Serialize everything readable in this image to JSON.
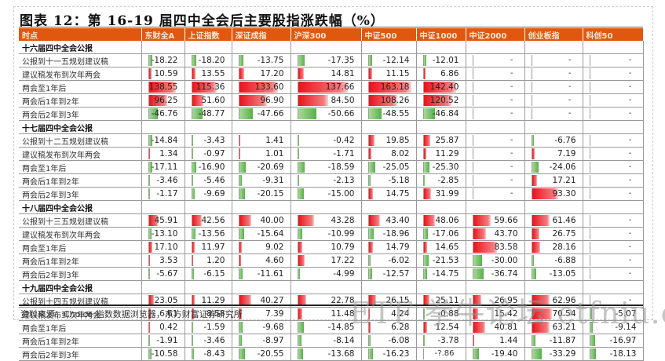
{
  "title": "图表 12：第 16-19 届四中全会后主要股指涨跌幅（%）",
  "header": {
    "label_col": "时点",
    "columns": [
      "东财全A",
      "上证指数",
      "深证成指",
      "沪深300",
      "中证500",
      "中证1000",
      "中证2000",
      "创业板指",
      "科创50"
    ]
  },
  "colors": {
    "header_bg": "#e0580f",
    "positive_bar": "#e8141b",
    "negative_bar": "#58b04a"
  },
  "sections": [
    {
      "title": "十六届四中全会公报",
      "rows": [
        {
          "label": "公报到十一五规划建议稿",
          "values": [
            "-18.22",
            "-18.20",
            "-13.75",
            "-17.35",
            "-12.14",
            "-12.01",
            "-",
            "-",
            "-"
          ]
        },
        {
          "label": "建议稿发布到次年两会",
          "values": [
            "10.59",
            "13.55",
            "17.20",
            "14.81",
            "11.15",
            "6.86",
            "-",
            "-",
            "-"
          ]
        },
        {
          "label": "两会至1年后",
          "values": [
            "138.55",
            "115.36",
            "133.60",
            "137.66",
            "163.18",
            "142.40",
            "-",
            "-",
            "-"
          ]
        },
        {
          "label": "两会后1年到2年",
          "values": [
            "96.25",
            "51.60",
            "96.90",
            "84.50",
            "108.26",
            "120.52",
            "-",
            "-",
            "-"
          ]
        },
        {
          "label": "两会后2年到3年",
          "values": [
            "-46.76",
            "-48.77",
            "-47.66",
            "-50.66",
            "-48.55",
            "-46.84",
            "-",
            "-",
            "-"
          ]
        }
      ]
    },
    {
      "title": "十七届四中全会公报",
      "rows": [
        {
          "label": "公报到十二五规划建议稿",
          "values": [
            "-14.84",
            "-3.43",
            "1.41",
            "-0.42",
            "19.85",
            "25.87",
            "-",
            "-6.76",
            "-"
          ]
        },
        {
          "label": "建议稿发布到次年两会",
          "values": [
            "1.34",
            "-0.97",
            "1.01",
            "-1.71",
            "8.02",
            "11.29",
            "-",
            "7.19",
            "-"
          ]
        },
        {
          "label": "两会至1年后",
          "values": [
            "-17.11",
            "-16.90",
            "-20.69",
            "-18.59",
            "-25.05",
            "-25.30",
            "-",
            "-24.06",
            "-"
          ]
        },
        {
          "label": "两会后1年到2年",
          "values": [
            "-3.46",
            "-5.46",
            "-9.31",
            "-2.13",
            "-5.18",
            "-2.85",
            "-",
            "17.21",
            "-"
          ]
        },
        {
          "label": "两会后2年到3年",
          "values": [
            "-1.17",
            "-9.69",
            "-20.15",
            "-15.00",
            "14.75",
            "31.99",
            "-",
            "93.30",
            "-"
          ]
        }
      ]
    },
    {
      "title": "十八届四中全会公报",
      "rows": [
        {
          "label": "公报到十三五规划建议稿",
          "values": [
            "45.91",
            "42.56",
            "40.00",
            "43.28",
            "43.40",
            "48.06",
            "59.66",
            "61.46",
            "-"
          ]
        },
        {
          "label": "建议稿发布到次年两会",
          "values": [
            "-13.10",
            "-13.56",
            "-15.64",
            "-10.99",
            "-18.96",
            "-17.06",
            "43.70",
            "26.75",
            "-"
          ]
        },
        {
          "label": "两会至1年后",
          "values": [
            "17.10",
            "11.97",
            "9.02",
            "10.79",
            "14.79",
            "14.65",
            "83.58",
            "28.16",
            "-"
          ]
        },
        {
          "label": "两会后1年到2年",
          "values": [
            "3.53",
            "1.20",
            "4.60",
            "17.22",
            "-6.02",
            "-21.53",
            "-30.00",
            "-6.88",
            "-"
          ]
        },
        {
          "label": "两会后2年到3年",
          "values": [
            "-5.67",
            "-6.15",
            "-11.61",
            "-4.99",
            "-12.57",
            "-14.75",
            "-36.74",
            "-13.05",
            "-"
          ]
        }
      ]
    },
    {
      "title": "十九届四中全会公报",
      "rows": [
        {
          "label": "公报到十四五规划建议稿",
          "values": [
            "23.05",
            "11.29",
            "40.27",
            "22.78",
            "26.15",
            "25.11",
            "26.95",
            "62.96",
            "-"
          ]
        },
        {
          "label": "建议稿发布到次年两会",
          "values": [
            "6.61",
            "8.58",
            "7.39",
            "11.48",
            "4.24",
            "-0.88",
            "15.42",
            "70.54",
            "-5.07"
          ]
        },
        {
          "label": "两会至1年后",
          "values": [
            "0.42",
            "-1.59",
            "-9.68",
            "-14.85",
            "6.28",
            "12.54",
            "40.81",
            "63.21",
            "-9.14"
          ]
        },
        {
          "label": "两会后1年到2年",
          "values": [
            "-1.91",
            "-3.46",
            "-8.97",
            "-8.14",
            "-6.08",
            "-3.78",
            "1.44",
            "-11.87",
            "-16.97"
          ]
        },
        {
          "label": "两会后2年到3年",
          "values": [
            "-10.58",
            "-8.43",
            "-20.55",
            "-13.68",
            "-16.23",
            "-?.86",
            "-19.40",
            "-33.29",
            "-18.13"
          ]
        }
      ]
    }
  ],
  "source": "资料来源：Choice 指数数据浏览器，东方财富证券研究所",
  "watermark": "ETF 拳牛论坛 etfniu.com"
}
